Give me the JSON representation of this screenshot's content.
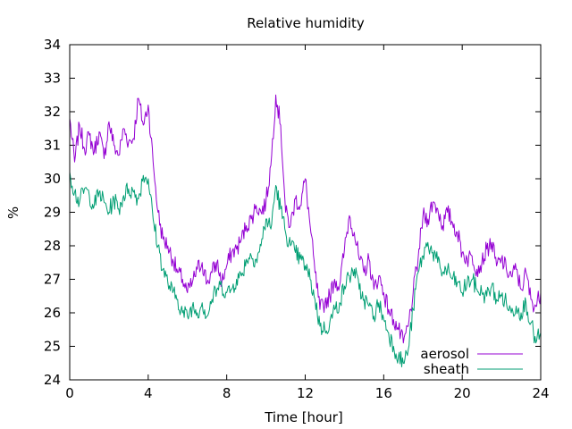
{
  "chart_data": {
    "type": "line",
    "title": "Relative humidity",
    "xlabel": "Time [hour]",
    "ylabel": "%",
    "xlim": [
      0,
      24
    ],
    "ylim": [
      24,
      34
    ],
    "xticks": [
      0,
      4,
      8,
      12,
      16,
      20,
      24
    ],
    "yticks": [
      24,
      25,
      26,
      27,
      28,
      29,
      30,
      31,
      32,
      33,
      34
    ],
    "grid": false,
    "legend_position": "bottom-right",
    "series": [
      {
        "name": "aerosol",
        "color": "#9400d3",
        "x": [
          0,
          0.25,
          0.5,
          0.75,
          1,
          1.25,
          1.5,
          1.75,
          2,
          2.25,
          2.5,
          2.75,
          3,
          3.25,
          3.5,
          3.75,
          4,
          4.25,
          4.5,
          4.75,
          5,
          5.25,
          5.5,
          5.75,
          6,
          6.25,
          6.5,
          6.75,
          7,
          7.25,
          7.5,
          7.75,
          8,
          8.25,
          8.5,
          8.75,
          9,
          9.25,
          9.5,
          9.75,
          10,
          10.25,
          10.5,
          10.75,
          11,
          11.25,
          11.5,
          11.75,
          12,
          12.25,
          12.5,
          12.75,
          13,
          13.25,
          13.5,
          13.75,
          14,
          14.25,
          14.5,
          14.75,
          15,
          15.25,
          15.5,
          15.75,
          16,
          16.25,
          16.5,
          16.75,
          17,
          17.25,
          17.5,
          17.75,
          18,
          18.25,
          18.5,
          18.75,
          19,
          19.25,
          19.5,
          19.75,
          20,
          20.25,
          20.5,
          20.75,
          21,
          21.25,
          21.5,
          21.75,
          22,
          22.25,
          22.5,
          22.75,
          23,
          23.25,
          23.5,
          23.75,
          24
        ],
        "y": [
          31.8,
          30.5,
          31.6,
          30.9,
          31.3,
          30.8,
          31.4,
          30.6,
          31.7,
          31.0,
          30.7,
          31.5,
          31.1,
          31.2,
          32.4,
          31.6,
          32.2,
          30.5,
          29.0,
          28.2,
          28.0,
          27.6,
          27.2,
          27.0,
          26.6,
          26.9,
          27.3,
          27.5,
          26.9,
          27.2,
          27.5,
          26.9,
          27.4,
          27.8,
          27.9,
          28.2,
          28.6,
          28.8,
          29.2,
          29.0,
          29.3,
          30.4,
          32.5,
          31.6,
          29.0,
          28.6,
          29.4,
          29.2,
          30.0,
          28.6,
          27.2,
          26.1,
          26.3,
          26.5,
          27.0,
          26.8,
          27.9,
          28.9,
          28.4,
          27.6,
          27.2,
          27.6,
          26.7,
          27.1,
          26.6,
          26.1,
          25.8,
          25.5,
          25.1,
          25.6,
          26.6,
          27.6,
          28.9,
          28.8,
          29.3,
          29.1,
          28.6,
          29.0,
          28.7,
          28.4,
          27.8,
          27.6,
          27.7,
          27.3,
          27.5,
          27.9,
          28.1,
          27.4,
          27.6,
          27.3,
          27.1,
          27.3,
          26.7,
          27.2,
          26.4,
          26.2,
          26.6
        ]
      },
      {
        "name": "sheath",
        "color": "#009e73",
        "x": [
          0,
          0.25,
          0.5,
          0.75,
          1,
          1.25,
          1.5,
          1.75,
          2,
          2.25,
          2.5,
          2.75,
          3,
          3.25,
          3.5,
          3.75,
          4,
          4.25,
          4.5,
          4.75,
          5,
          5.25,
          5.5,
          5.75,
          6,
          6.25,
          6.5,
          6.75,
          7,
          7.25,
          7.5,
          7.75,
          8,
          8.25,
          8.5,
          8.75,
          9,
          9.25,
          9.5,
          9.75,
          10,
          10.25,
          10.5,
          10.75,
          11,
          11.25,
          11.5,
          11.75,
          12,
          12.25,
          12.5,
          12.75,
          13,
          13.25,
          13.5,
          13.75,
          14,
          14.25,
          14.5,
          14.75,
          15,
          15.25,
          15.5,
          15.75,
          16,
          16.25,
          16.5,
          16.75,
          17,
          17.25,
          17.5,
          17.75,
          18,
          18.25,
          18.5,
          18.75,
          19,
          19.25,
          19.5,
          19.75,
          20,
          20.25,
          20.5,
          20.75,
          21,
          21.25,
          21.5,
          21.75,
          22,
          22.25,
          22.5,
          22.75,
          23,
          23.25,
          23.5,
          23.75,
          24
        ],
        "y": [
          30.2,
          29.6,
          29.3,
          29.7,
          29.5,
          29.2,
          29.6,
          29.3,
          29.0,
          29.4,
          29.1,
          29.5,
          29.7,
          29.6,
          29.4,
          30.1,
          30.0,
          28.8,
          28.0,
          27.3,
          26.9,
          26.6,
          26.4,
          26.0,
          25.9,
          26.2,
          26.0,
          26.3,
          25.9,
          26.4,
          26.7,
          26.8,
          26.6,
          26.7,
          27.0,
          27.1,
          27.6,
          27.7,
          27.6,
          28.0,
          28.8,
          28.5,
          29.8,
          29.1,
          28.4,
          28.0,
          27.8,
          27.6,
          27.4,
          27.0,
          26.4,
          25.6,
          25.5,
          25.7,
          26.1,
          26.3,
          26.8,
          27.1,
          27.3,
          26.7,
          26.4,
          26.2,
          25.9,
          26.3,
          25.8,
          25.4,
          25.0,
          24.7,
          24.5,
          24.9,
          26.1,
          27.2,
          27.7,
          28.1,
          27.8,
          27.5,
          27.2,
          27.3,
          27.0,
          26.9,
          26.6,
          26.9,
          27.0,
          26.7,
          26.6,
          26.5,
          26.8,
          26.4,
          26.5,
          26.3,
          26.0,
          26.2,
          26.0,
          26.3,
          25.7,
          25.1,
          25.4
        ]
      }
    ]
  }
}
